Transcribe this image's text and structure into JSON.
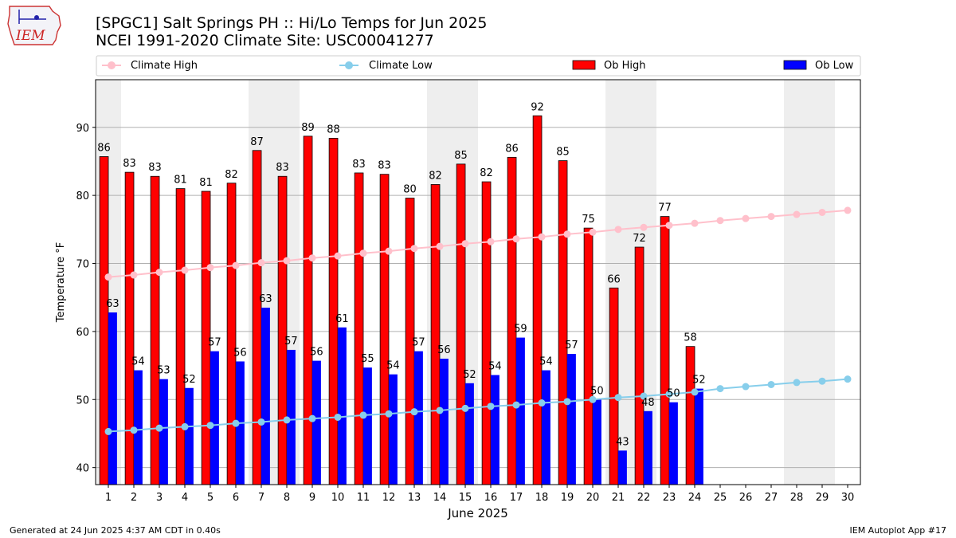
{
  "logo": {
    "text": "IEM"
  },
  "chart_data": {
    "type": "bar",
    "title": "[SPGC1] Salt Springs PH :: Hi/Lo Temps for Jun 2025",
    "subtitle": "NCEI 1991-2020 Climate Site: USC00041277",
    "xlabel": "June 2025",
    "ylabel": "Temperature °F",
    "ylim": [
      37.5,
      97
    ],
    "yticks": [
      40,
      50,
      60,
      70,
      80,
      90
    ],
    "days": [
      1,
      2,
      3,
      4,
      5,
      6,
      7,
      8,
      9,
      10,
      11,
      12,
      13,
      14,
      15,
      16,
      17,
      18,
      19,
      20,
      21,
      22,
      23,
      24,
      25,
      26,
      27,
      28,
      29,
      30
    ],
    "weekend_days": [
      1,
      7,
      8,
      14,
      15,
      21,
      22,
      28,
      29
    ],
    "series": [
      {
        "name": "Climate High",
        "kind": "line",
        "color": "#ffc0cb",
        "values": [
          68.0,
          68.3,
          68.7,
          69.0,
          69.4,
          69.7,
          70.1,
          70.4,
          70.8,
          71.1,
          71.5,
          71.8,
          72.2,
          72.5,
          72.9,
          73.2,
          73.6,
          73.9,
          74.3,
          74.6,
          75.0,
          75.3,
          75.6,
          75.9,
          76.3,
          76.6,
          76.9,
          77.2,
          77.5,
          77.8
        ]
      },
      {
        "name": "Climate Low",
        "kind": "line",
        "color": "#87ceeb",
        "values": [
          45.3,
          45.5,
          45.8,
          46.0,
          46.2,
          46.5,
          46.7,
          47.0,
          47.2,
          47.4,
          47.7,
          47.9,
          48.2,
          48.4,
          48.7,
          49.0,
          49.2,
          49.5,
          49.7,
          50.0,
          50.3,
          50.5,
          50.8,
          51.1,
          51.6,
          51.9,
          52.2,
          52.5,
          52.7,
          53.0
        ]
      },
      {
        "name": "Ob High",
        "kind": "bar",
        "color": "#ff0000",
        "values": [
          85.7,
          83.4,
          82.8,
          81.0,
          80.6,
          81.8,
          86.6,
          82.8,
          88.7,
          88.4,
          83.3,
          83.1,
          79.6,
          81.6,
          84.6,
          82.0,
          85.6,
          91.7,
          85.1,
          75.2,
          66.4,
          72.4,
          76.9,
          57.8
        ],
        "labels": [
          "86",
          "83",
          "83",
          "81",
          "81",
          "82",
          "87",
          "83",
          "89",
          "88",
          "83",
          "83",
          "80",
          "82",
          "85",
          "82",
          "86",
          "92",
          "85",
          "75",
          "66",
          "72",
          "77",
          "58"
        ]
      },
      {
        "name": "Ob Low",
        "kind": "bar",
        "color": "#0000ff",
        "values": [
          62.8,
          54.3,
          53.0,
          51.7,
          57.1,
          55.6,
          63.5,
          57.3,
          55.7,
          60.6,
          54.7,
          53.7,
          57.1,
          56.0,
          52.4,
          53.6,
          59.1,
          54.3,
          56.7,
          50.0,
          42.5,
          48.3,
          49.6,
          51.6
        ],
        "labels": [
          "63",
          "54",
          "53",
          "52",
          "57",
          "56",
          "63",
          "57",
          "56",
          "61",
          "55",
          "54",
          "57",
          "56",
          "52",
          "54",
          "59",
          "54",
          "57",
          "50",
          "43",
          "48",
          "50",
          "52"
        ]
      }
    ],
    "legend": [
      "Climate High",
      "Climate Low",
      "Ob High",
      "Ob Low"
    ],
    "legend_position": "top",
    "grid": true
  },
  "footer": {
    "left": "Generated at 24 Jun 2025 4:37 AM CDT in 0.40s",
    "right": "IEM Autoplot App #17"
  }
}
